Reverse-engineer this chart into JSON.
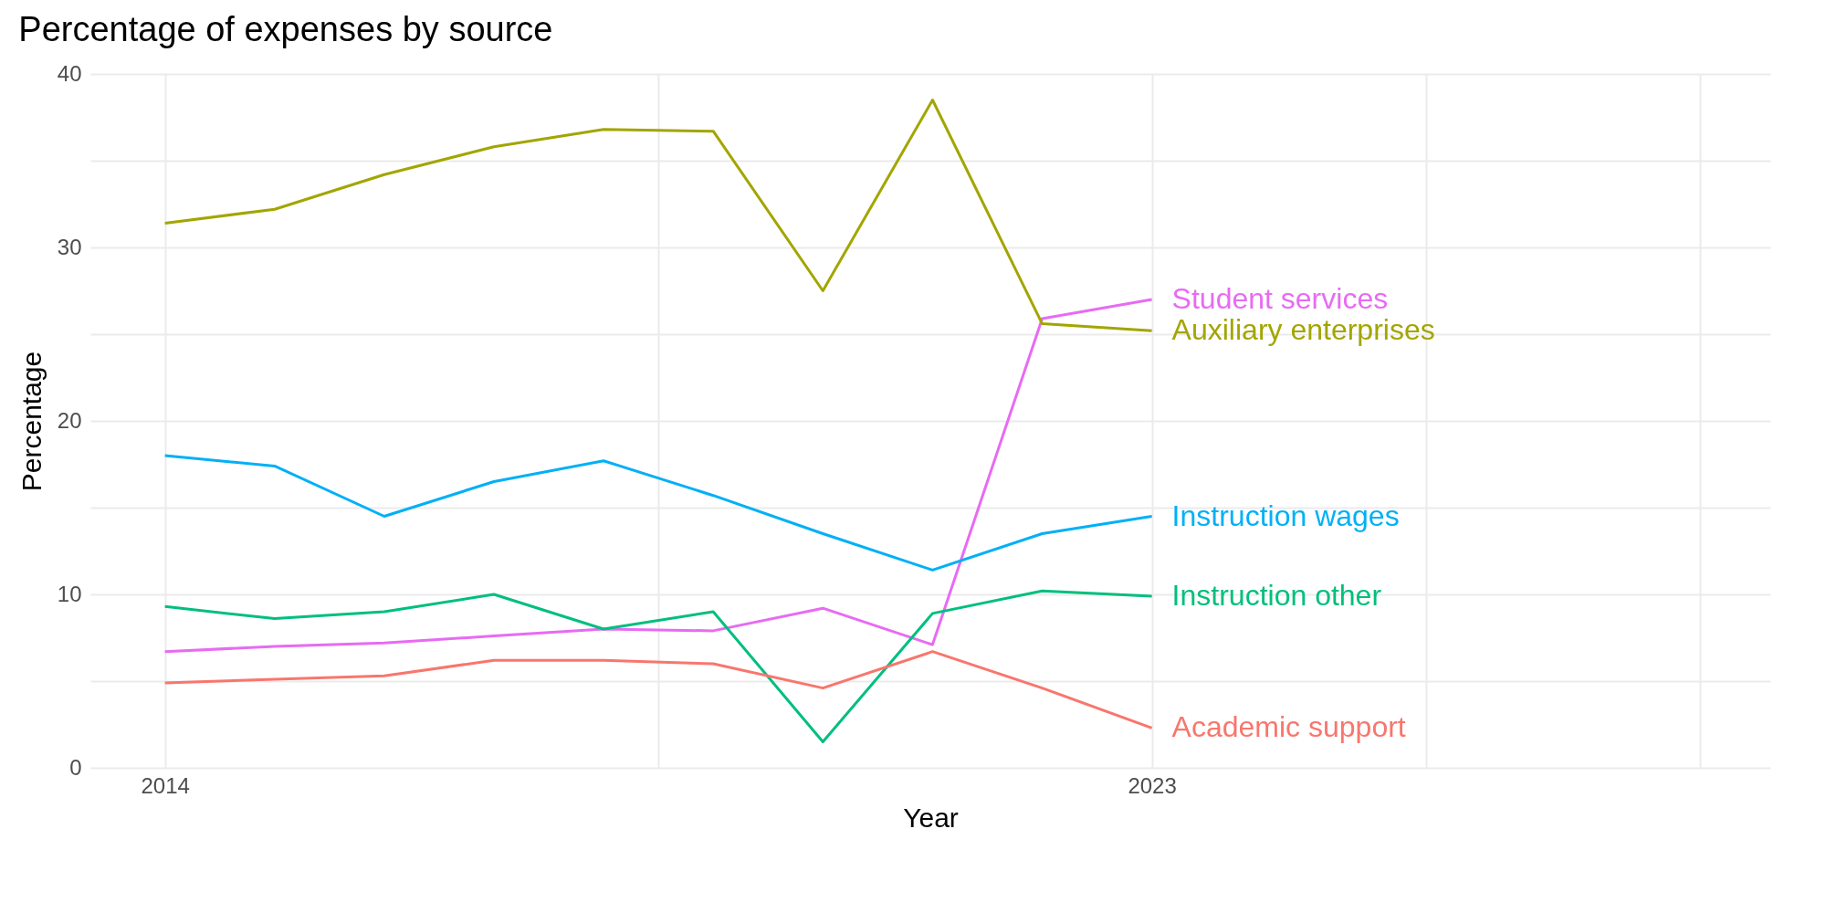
{
  "chart_data": {
    "type": "line",
    "title": "Percentage of expenses by source",
    "xlabel": "Year",
    "ylabel": "Percentage",
    "x": [
      2014,
      2015,
      2016,
      2017,
      2018,
      2019,
      2020,
      2021,
      2022,
      2023
    ],
    "xlim": [
      2013.32,
      2028.64
    ],
    "xticks": [
      2014,
      {
        "value": 2018.5,
        "label": null
      },
      2023,
      {
        "value": 2025.5,
        "label": null
      },
      {
        "value": 2028,
        "label": null
      }
    ],
    "ylim": [
      0,
      40
    ],
    "yticks": [
      0,
      {
        "value": 5,
        "label": null
      },
      10,
      {
        "value": 15,
        "label": null
      },
      20,
      {
        "value": 25,
        "label": null
      },
      30,
      {
        "value": 35,
        "label": null
      },
      40
    ],
    "grid": true,
    "series": [
      {
        "name": "Student services",
        "color": "#e76bf3",
        "values": [
          6.7,
          7.0,
          7.2,
          7.6,
          8.0,
          7.9,
          9.2,
          7.1,
          25.9,
          27.0
        ]
      },
      {
        "name": "Auxiliary enterprises",
        "color": "#a3a500",
        "values": [
          31.4,
          32.2,
          34.2,
          35.8,
          36.8,
          36.7,
          27.5,
          38.5,
          25.6,
          25.2
        ]
      },
      {
        "name": "Instruction wages",
        "color": "#00b0f6",
        "values": [
          18.0,
          17.4,
          14.5,
          16.5,
          17.7,
          15.7,
          13.5,
          11.4,
          13.5,
          14.5
        ]
      },
      {
        "name": "Instruction other",
        "color": "#00bf7d",
        "values": [
          9.3,
          8.6,
          9.0,
          10.0,
          8.0,
          9.0,
          1.5,
          8.9,
          10.2,
          9.9
        ]
      },
      {
        "name": "Academic support",
        "color": "#f8766d",
        "values": [
          4.9,
          5.1,
          5.3,
          6.2,
          6.2,
          6.0,
          4.6,
          6.7,
          4.6,
          2.3
        ]
      }
    ]
  }
}
